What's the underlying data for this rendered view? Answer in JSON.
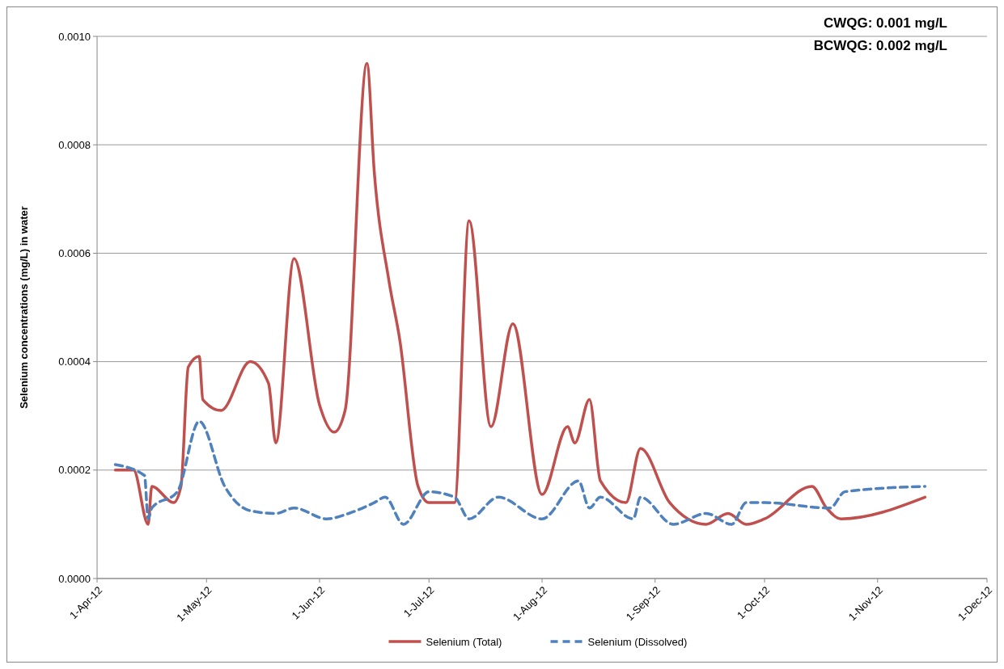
{
  "chart_data": {
    "type": "line",
    "ylabel": "Selenium concentrations (mg/L) in water",
    "annotations": [
      "CWQG: 0.001 mg/L",
      "BCWQG: 0.002 mg/L"
    ],
    "xlim": [
      "2012-04-01",
      "2012-12-01"
    ],
    "xticks": [
      {
        "value": "2012-04-01",
        "label": "1-Apr-12"
      },
      {
        "value": "2012-05-01",
        "label": "1-May-12"
      },
      {
        "value": "2012-06-01",
        "label": "1-Jun-12"
      },
      {
        "value": "2012-07-01",
        "label": "1-Jul-12"
      },
      {
        "value": "2012-08-01",
        "label": "1-Aug-12"
      },
      {
        "value": "2012-09-01",
        "label": "1-Sep-12"
      },
      {
        "value": "2012-10-01",
        "label": "1-Oct-12"
      },
      {
        "value": "2012-11-01",
        "label": "1-Nov-12"
      },
      {
        "value": "2012-12-01",
        "label": "1-Dec-12"
      }
    ],
    "ylim": [
      0,
      0.001
    ],
    "yticks": [
      {
        "value": 0,
        "label": "0.0000"
      },
      {
        "value": 0.0002,
        "label": "0.0002"
      },
      {
        "value": 0.0004,
        "label": "0.0004"
      },
      {
        "value": 0.0006,
        "label": "0.0006"
      },
      {
        "value": 0.0008,
        "label": "0.0008"
      },
      {
        "value": 0.001,
        "label": "0.0010"
      }
    ],
    "grid": "y",
    "legend": "bottom",
    "series": [
      {
        "name": "Selenium (Total)",
        "color": "#c0504d",
        "line_style": "solid",
        "x": [
          "2012-04-06",
          "2012-04-11",
          "2012-04-15",
          "2012-04-16",
          "2012-04-22",
          "2012-04-24",
          "2012-04-26",
          "2012-04-29",
          "2012-04-30",
          "2012-05-05",
          "2012-05-13",
          "2012-05-18",
          "2012-05-20",
          "2012-05-25",
          "2012-06-01",
          "2012-06-05",
          "2012-06-08",
          "2012-06-14",
          "2012-06-16",
          "2012-06-20",
          "2012-06-23",
          "2012-06-28",
          "2012-07-01",
          "2012-07-08",
          "2012-07-12",
          "2012-07-18",
          "2012-07-24",
          "2012-08-01",
          "2012-08-08",
          "2012-08-10",
          "2012-08-14",
          "2012-08-17",
          "2012-08-24",
          "2012-08-28",
          "2012-09-05",
          "2012-09-15",
          "2012-09-21",
          "2012-09-26",
          "2012-10-01",
          "2012-10-14",
          "2012-10-18",
          "2012-10-22",
          "2012-11-14"
        ],
        "values": [
          0.0002,
          0.0002,
          0.0001,
          0.00017,
          0.00014,
          0.00017,
          0.00039,
          0.00041,
          0.00033,
          0.00031,
          0.0004,
          0.00036,
          0.00025,
          0.00059,
          0.00032,
          0.00027,
          0.00031,
          0.00095,
          0.00075,
          0.00055,
          0.00044,
          0.00017,
          0.00014,
          0.00014,
          0.00066,
          0.00028,
          0.00047,
          0.000155,
          0.00028,
          0.00025,
          0.00033,
          0.00018,
          0.00014,
          0.00024,
          0.00014,
          0.0001,
          0.00012,
          0.0001,
          0.00011,
          0.00017,
          0.00013,
          0.00011,
          0.00015
        ]
      },
      {
        "name": "Selenium (Dissolved)",
        "color": "#4f81bd",
        "line_style": "dashed",
        "x": [
          "2012-04-06",
          "2012-04-14",
          "2012-04-15",
          "2012-04-16",
          "2012-04-23",
          "2012-04-29",
          "2012-05-06",
          "2012-05-13",
          "2012-05-20",
          "2012-05-25",
          "2012-06-03",
          "2012-06-09",
          "2012-06-16",
          "2012-06-19",
          "2012-06-24",
          "2012-07-01",
          "2012-07-08",
          "2012-07-12",
          "2012-07-20",
          "2012-08-01",
          "2012-08-11",
          "2012-08-14",
          "2012-08-17",
          "2012-08-26",
          "2012-08-28",
          "2012-09-06",
          "2012-09-15",
          "2012-09-22",
          "2012-09-26",
          "2012-10-01",
          "2012-10-19",
          "2012-10-23",
          "2012-11-14"
        ],
        "values": [
          0.00021,
          0.00019,
          0.00011,
          0.00013,
          0.00016,
          0.00029,
          0.00017,
          0.000125,
          0.00012,
          0.00013,
          0.00011,
          0.00012,
          0.00014,
          0.00015,
          0.0001,
          0.00016,
          0.00015,
          0.00011,
          0.00015,
          0.00011,
          0.00018,
          0.00013,
          0.00015,
          0.00011,
          0.00015,
          0.0001,
          0.00012,
          0.0001,
          0.00014,
          0.00014,
          0.00013,
          0.00016,
          0.00017
        ]
      }
    ]
  }
}
